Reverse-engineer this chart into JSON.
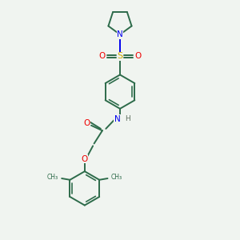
{
  "background_color": "#f0f4f0",
  "bond_color": "#2d6b4a",
  "N_color": "#0000ee",
  "O_color": "#ee0000",
  "S_color": "#ccaa00",
  "line_width": 1.4,
  "figsize": [
    3.0,
    3.0
  ],
  "dpi": 100,
  "xlim": [
    2.5,
    7.5
  ],
  "ylim": [
    0.0,
    10.0
  ]
}
